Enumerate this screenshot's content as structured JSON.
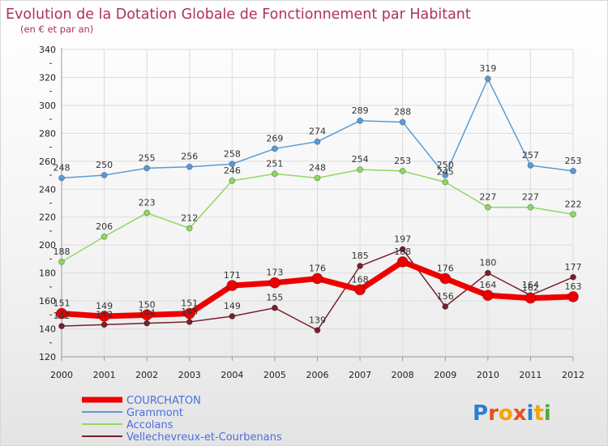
{
  "chart_data": {
    "type": "line",
    "title": "Evolution de la Dotation Globale de Fonctionnement par Habitant",
    "subtitle": "(en € et par an)",
    "x": [
      "2000",
      "2001",
      "2002",
      "2003",
      "2004",
      "2005",
      "2006",
      "2007",
      "2008",
      "2009",
      "2010",
      "2011",
      "2012"
    ],
    "ylim": [
      120,
      340
    ],
    "yticks": [
      120,
      140,
      160,
      180,
      200,
      220,
      240,
      260,
      280,
      300,
      320,
      340
    ],
    "grid": true,
    "legend_position": "bottom-left",
    "series": [
      {
        "name": "Vellechevreux-et-Courbenans",
        "color": "#7a1f2b",
        "values": [
          142,
          143,
          144,
          145,
          149,
          155,
          139,
          185,
          197,
          156,
          180,
          164,
          177
        ]
      },
      {
        "name": "Accolans",
        "color": "#90d860",
        "values": [
          188,
          206,
          223,
          212,
          246,
          251,
          248,
          254,
          253,
          245,
          227,
          227,
          222
        ]
      },
      {
        "name": "Grammont",
        "color": "#5b9bd5",
        "values": [
          248,
          250,
          255,
          256,
          258,
          269,
          274,
          289,
          288,
          250,
          319,
          257,
          253
        ]
      },
      {
        "name": "COURCHATON",
        "color": "#ee0000",
        "values": [
          151,
          149,
          150,
          151,
          171,
          173,
          176,
          168,
          188,
          176,
          164,
          162,
          163
        ]
      }
    ]
  },
  "logo": {
    "text": "Proxiti",
    "colors": [
      "#2a7fd4",
      "#e94f1d",
      "#f5a300",
      "#e94f1d",
      "#2a7fd4",
      "#f5a300",
      "#4ab030"
    ]
  }
}
